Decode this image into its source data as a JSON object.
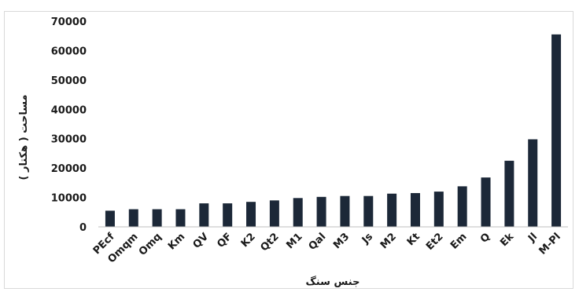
{
  "chart_data": {
    "type": "bar",
    "title": "",
    "xlabel": "جنس سنگ",
    "ylabel": "مساحت ( هکتار )",
    "ylim": [
      0,
      70000
    ],
    "yticks": [
      0,
      10000,
      20000,
      30000,
      40000,
      50000,
      60000,
      70000
    ],
    "grid": false,
    "legend": "none",
    "bar_color": "#1c2838",
    "categories": [
      "PEcf",
      "Omqm",
      "Omq",
      "Km",
      "QV",
      "QF",
      "K2",
      "Qt2",
      "M1",
      "Qal",
      "M3",
      "Js",
      "M2",
      "Kt",
      "Et2",
      "Em",
      "Q",
      "Ek",
      "Jl",
      "M-Pl"
    ],
    "values": [
      5500,
      6000,
      6000,
      6000,
      8000,
      8000,
      8500,
      9000,
      9800,
      10200,
      10500,
      10500,
      11300,
      11500,
      12000,
      13800,
      16800,
      22500,
      29800,
      65500
    ]
  }
}
